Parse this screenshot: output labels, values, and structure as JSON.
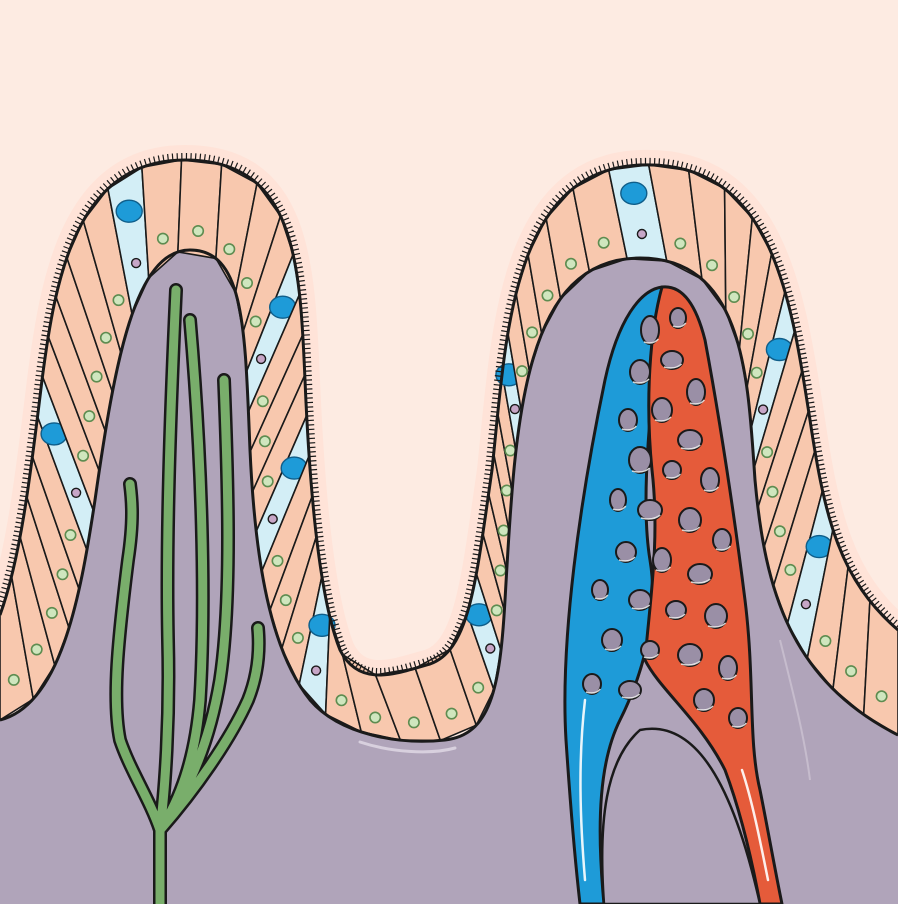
{
  "colors": {
    "background": "#FDEBE2",
    "halo": "#FFE3D8",
    "lamina_propria": "#B0A4BA",
    "lamina_shade": "#8E8499",
    "enterocyte": "#F8C8AE",
    "outline": "#1A1A1A",
    "nucleus": "#CFE6BE",
    "nucleus_ring": "#5E8C50",
    "goblet_cell": "#D3EEF6",
    "mucus": "#1E9BD8",
    "goblet_nucleus": "#C7A6C7",
    "lacteal": "#79AE6B",
    "venule": "#1E9BD8",
    "arteriole": "#E55B3A",
    "capillary_hole": "#9A8FA6"
  },
  "structures": [
    {
      "name": "villus",
      "count": 2
    },
    {
      "name": "epithelium-enterocytes"
    },
    {
      "name": "goblet-cells"
    },
    {
      "name": "microvilli-brush-border"
    },
    {
      "name": "lacteal",
      "icon": "lymph-vessel-icon"
    },
    {
      "name": "capillary-network",
      "icon": "blood-vessel-icon"
    }
  ]
}
